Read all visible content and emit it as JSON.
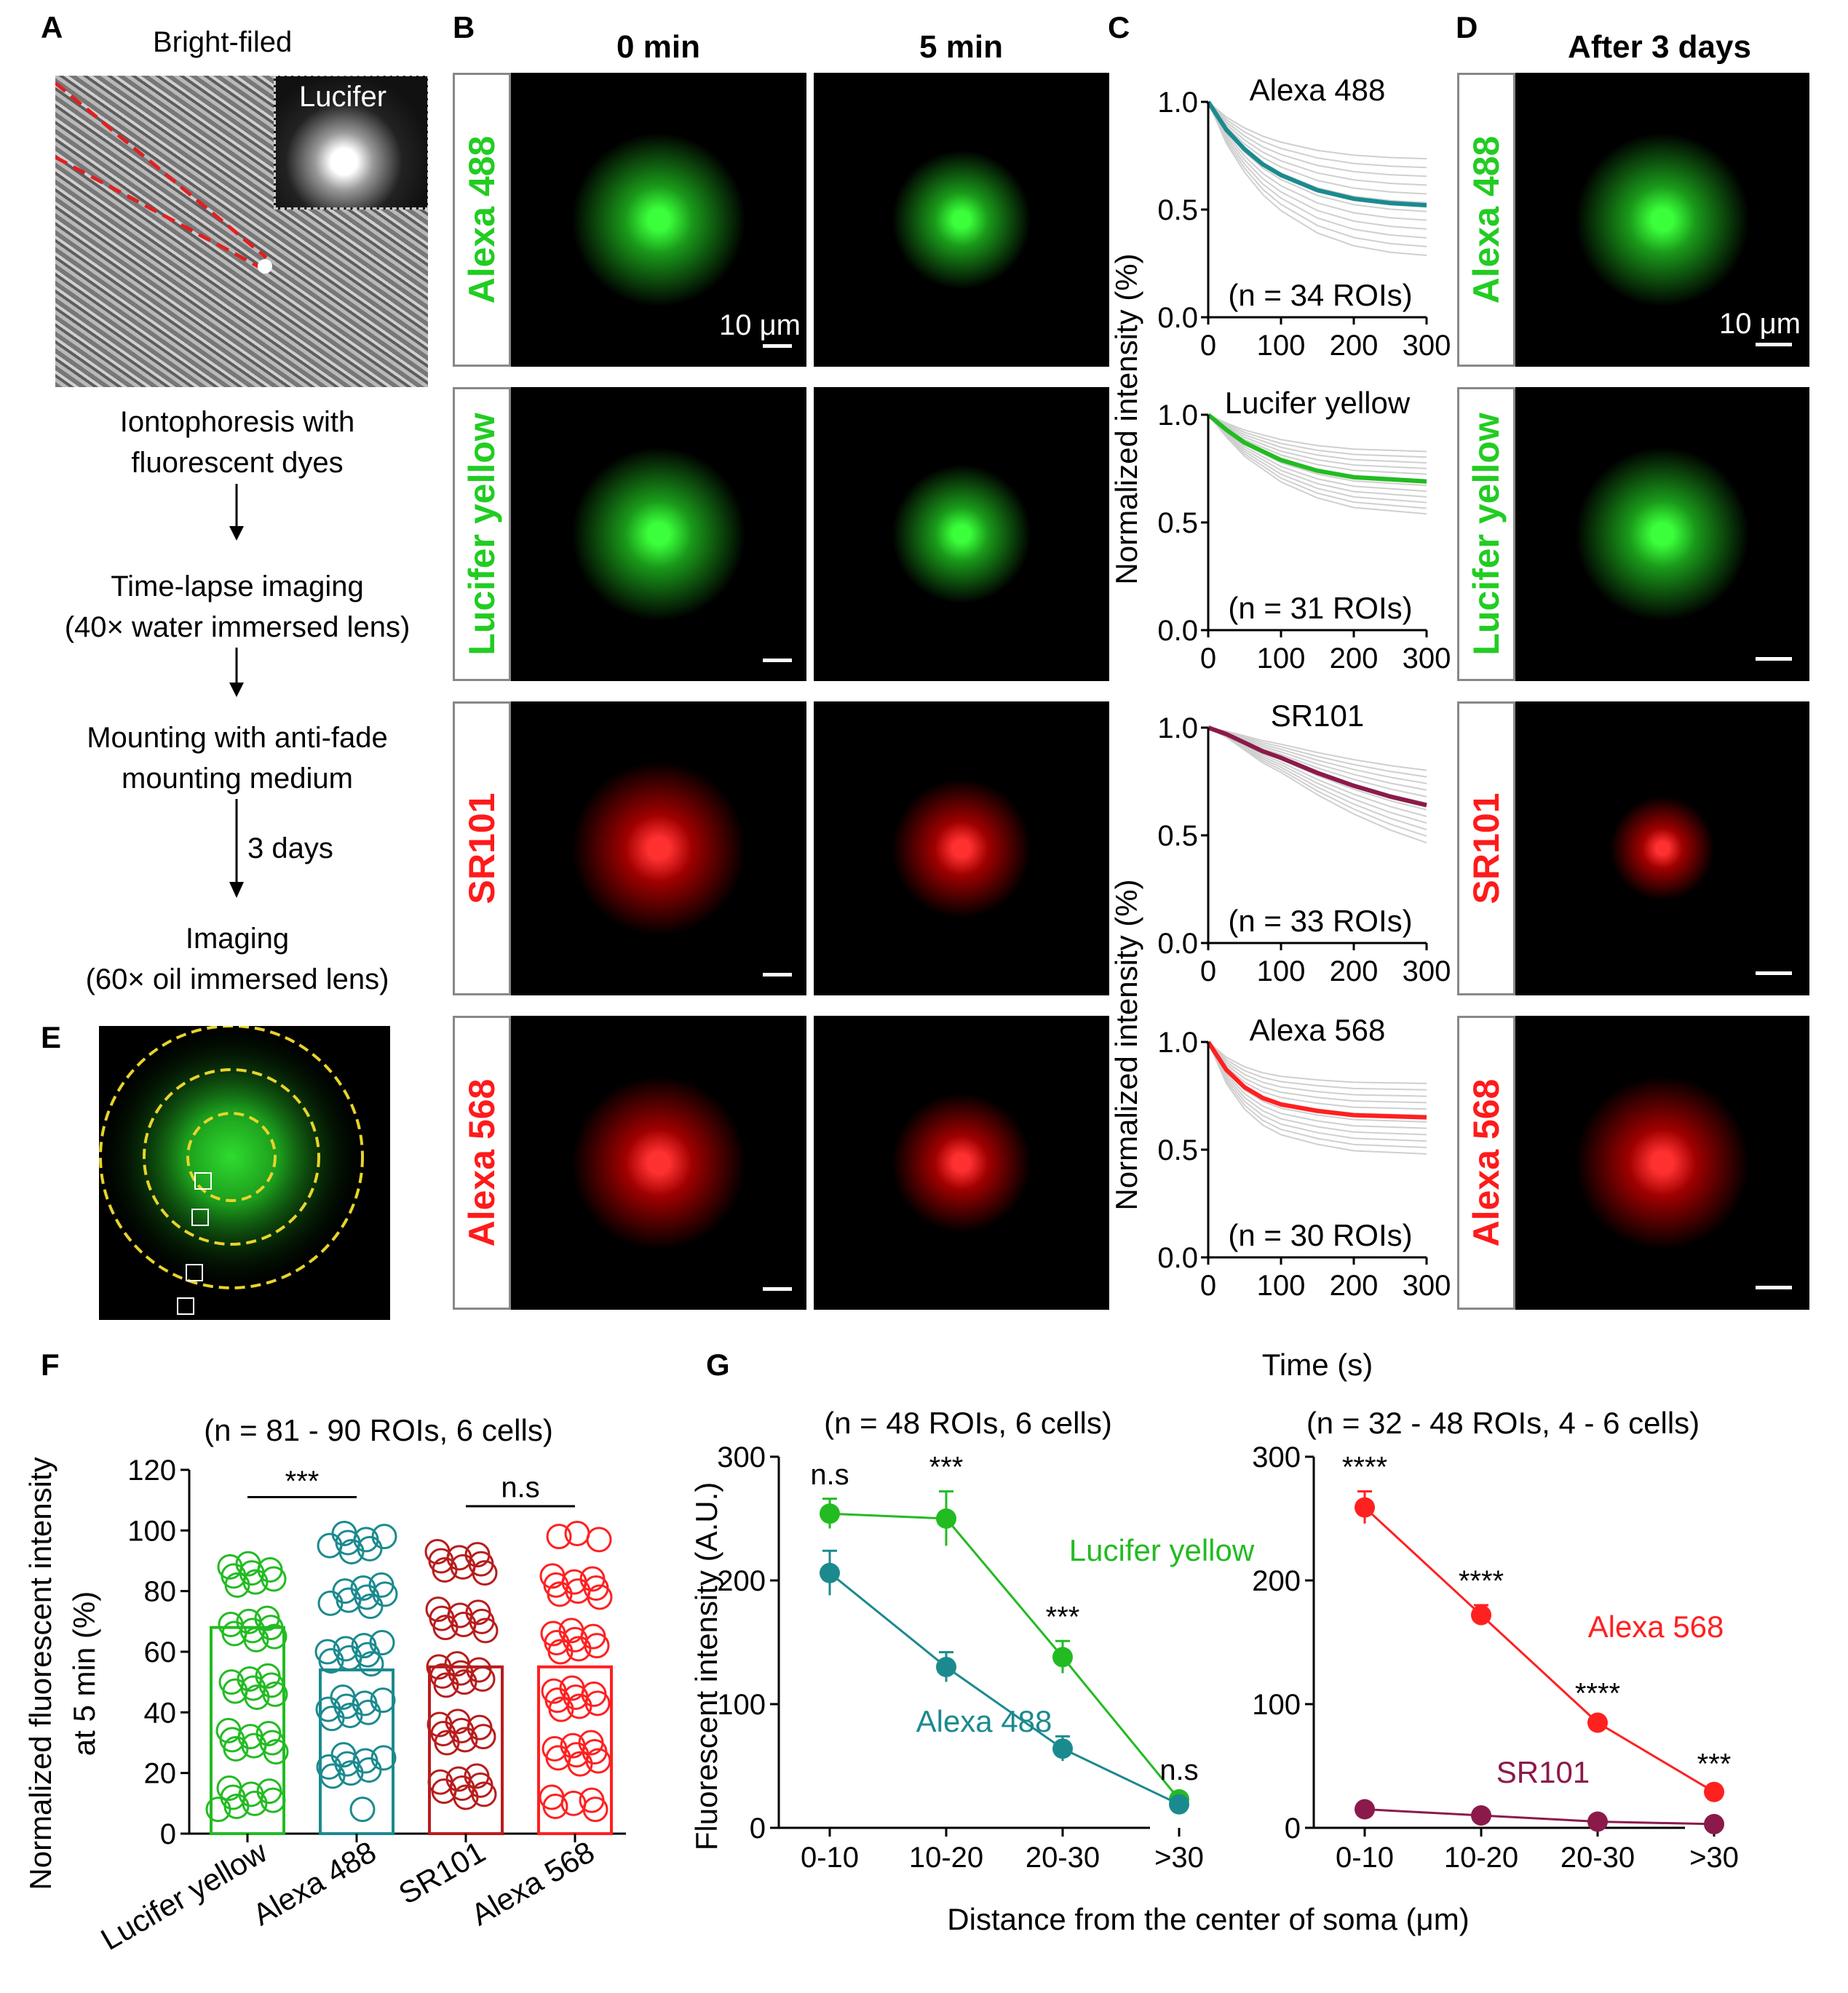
{
  "panels": {
    "A": "A",
    "B": "B",
    "C": "C",
    "D": "D",
    "E": "E",
    "F": "F",
    "G": "G"
  },
  "panelA": {
    "bright_field": "Bright-filed",
    "inset": "Lucifer",
    "step1": [
      "Iontophoresis with",
      "fluorescent dyes"
    ],
    "step2": [
      "Time-lapse imaging",
      "(40× water immersed lens)"
    ],
    "step3": [
      "Mounting with anti-fade",
      "mounting medium"
    ],
    "arrow_label": "3 days",
    "step4": [
      "Imaging",
      "(60× oil immersed lens)"
    ]
  },
  "panelB": {
    "col1": "0 min",
    "col2": "5 min",
    "scale": "10 μm",
    "dyes": [
      {
        "name": "Alexa 488",
        "color": "#22cc22"
      },
      {
        "name": "Lucifer yellow",
        "color": "#22cc22"
      },
      {
        "name": "SR101",
        "color": "#ff1a1a"
      },
      {
        "name": "Alexa 568",
        "color": "#ff1a1a"
      }
    ]
  },
  "panelC": {
    "ylabel": "Normalized intensity (%)",
    "xlabel": "Time (s)",
    "yticks": [
      "0.0",
      "0.5",
      "1.0"
    ],
    "xticks": [
      "0",
      "100",
      "200",
      "300"
    ],
    "plots": [
      {
        "title": "Alexa 488",
        "n": "(n = 34 ROIs)",
        "color": "#1b8a8f"
      },
      {
        "title": "Lucifer yellow",
        "n": "(n = 31 ROIs)",
        "color": "#22bb22"
      },
      {
        "title": "SR101",
        "n": "(n = 33 ROIs)",
        "color": "#8b1a4a"
      },
      {
        "title": "Alexa 568",
        "n": "(n = 30 ROIs)",
        "color": "#ff2020"
      }
    ]
  },
  "panelD": {
    "header": "After 3 days",
    "scale": "10 μm"
  },
  "chart_data": [
    {
      "type": "line",
      "title": "Alexa 488",
      "xlabel": "Time (s)",
      "ylabel": "Normalized intensity (%)",
      "x": [
        0,
        25,
        50,
        75,
        100,
        150,
        200,
        250,
        300
      ],
      "series": [
        {
          "values": [
            1.0,
            0.87,
            0.78,
            0.71,
            0.66,
            0.59,
            0.55,
            0.53,
            0.52
          ]
        }
      ],
      "xlim": [
        0,
        300
      ],
      "ylim": [
        0,
        1
      ]
    },
    {
      "type": "line",
      "title": "Lucifer yellow",
      "xlabel": "Time (s)",
      "ylabel": "Normalized intensity (%)",
      "x": [
        0,
        25,
        50,
        75,
        100,
        150,
        200,
        250,
        300
      ],
      "series": [
        {
          "values": [
            1.0,
            0.93,
            0.87,
            0.83,
            0.79,
            0.74,
            0.71,
            0.7,
            0.69
          ]
        }
      ],
      "xlim": [
        0,
        300
      ],
      "ylim": [
        0,
        1
      ]
    },
    {
      "type": "line",
      "title": "SR101",
      "xlabel": "Time (s)",
      "ylabel": "Normalized intensity (%)",
      "x": [
        0,
        25,
        50,
        75,
        100,
        150,
        200,
        250,
        300
      ],
      "series": [
        {
          "values": [
            1.0,
            0.97,
            0.93,
            0.89,
            0.86,
            0.79,
            0.73,
            0.68,
            0.64
          ]
        }
      ],
      "xlim": [
        0,
        300
      ],
      "ylim": [
        0,
        1
      ]
    },
    {
      "type": "line",
      "title": "Alexa 568",
      "xlabel": "Time (s)",
      "ylabel": "Normalized intensity (%)",
      "x": [
        0,
        25,
        50,
        75,
        100,
        150,
        200,
        250,
        300
      ],
      "series": [
        {
          "values": [
            1.0,
            0.87,
            0.79,
            0.74,
            0.71,
            0.68,
            0.66,
            0.655,
            0.65
          ]
        }
      ],
      "xlim": [
        0,
        300
      ],
      "ylim": [
        0,
        1
      ]
    },
    {
      "type": "bar",
      "title": "(n = 81 - 90 ROIs, 6 cells)",
      "ylabel": "Normalized fluorescent intensity at 5 min (%)",
      "categories": [
        "Lucifer yellow",
        "Alexa 488",
        "SR101",
        "Alexa 568"
      ],
      "values": [
        68,
        54,
        55,
        55
      ],
      "colors": [
        "#22bb22",
        "#1b8a8f",
        "#b81c1c",
        "#ff2020"
      ],
      "ylim": [
        0,
        120
      ],
      "yticks": [
        "0",
        "20",
        "40",
        "60",
        "80",
        "100",
        "120"
      ],
      "annotations": [
        "***",
        "n.s"
      ]
    },
    {
      "type": "line",
      "title": "(n = 48 ROIs, 6 cells)",
      "xlabel": "Distance from the center of soma (μm)",
      "ylabel": "Fluorescent intensity (A.U.)",
      "categories": [
        "0-10",
        "10-20",
        "20-30",
        ">30"
      ],
      "series": [
        {
          "name": "Lucifer yellow",
          "values": [
            254,
            250,
            138,
            23
          ],
          "errors": [
            12,
            22,
            13,
            4
          ],
          "color": "#22bb22"
        },
        {
          "name": "Alexa 488",
          "values": [
            206,
            130,
            64,
            19
          ],
          "errors": [
            18,
            12,
            10,
            3
          ],
          "color": "#1b8a8f"
        }
      ],
      "ylim": [
        0,
        300
      ],
      "yticks": [
        "0",
        "100",
        "200",
        "300"
      ],
      "annotations": [
        "n.s",
        "***",
        "***",
        "n.s"
      ]
    },
    {
      "type": "line",
      "title": "(n = 32 - 48 ROIs, 4 - 6 cells)",
      "xlabel": "Distance from the center of soma (μm)",
      "ylabel": "",
      "categories": [
        "0-10",
        "10-20",
        "20-30",
        ">30"
      ],
      "series": [
        {
          "name": "Alexa 568",
          "values": [
            259,
            172,
            85,
            29
          ],
          "errors": [
            13,
            8,
            4,
            3
          ],
          "color": "#ff2020"
        },
        {
          "name": "SR101",
          "values": [
            15,
            10,
            5,
            3
          ],
          "errors": [
            2,
            2,
            1,
            1
          ],
          "color": "#8b1a4a"
        }
      ],
      "ylim": [
        0,
        300
      ],
      "yticks": [
        "0",
        "100",
        "200",
        "300"
      ],
      "annotations": [
        "****",
        "****",
        "****",
        "***"
      ]
    }
  ]
}
